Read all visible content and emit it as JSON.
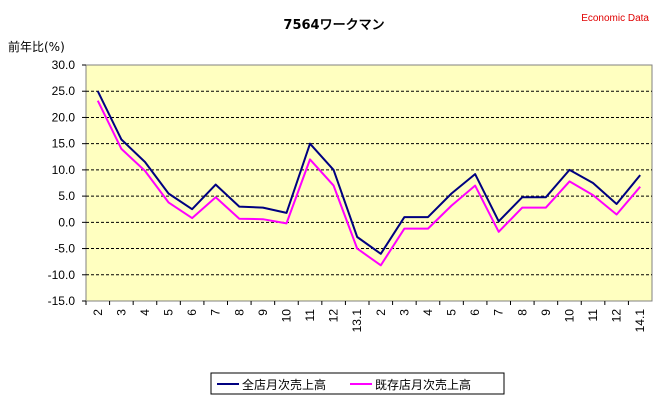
{
  "header": {
    "brand": "Economic Data"
  },
  "chart_data": {
    "type": "line",
    "title": "7564ワークマン",
    "ylabel": "前年比(%)",
    "xlabel": "",
    "ylim": [
      -15,
      30
    ],
    "yticks": [
      "30.0",
      "25.0",
      "20.0",
      "15.0",
      "10.0",
      "5.0",
      "0.0",
      "-5.0",
      "-10.0",
      "-15.0"
    ],
    "grid": "horizontal dashed",
    "legend_position": "bottom",
    "plot_background": "#ffffc0",
    "categories": [
      "2",
      "3",
      "4",
      "5",
      "6",
      "7",
      "8",
      "9",
      "10",
      "11",
      "12",
      "13.1",
      "2",
      "3",
      "4",
      "5",
      "6",
      "7",
      "8",
      "9",
      "10",
      "11",
      "12",
      "14.1"
    ],
    "series": [
      {
        "name": "全店月次売上高",
        "color": "#000080",
        "values": [
          25.0,
          15.8,
          11.5,
          5.5,
          2.5,
          7.2,
          3.0,
          2.8,
          1.8,
          15.0,
          10.0,
          -2.8,
          -6.0,
          1.0,
          1.0,
          5.5,
          9.2,
          0.2,
          4.8,
          4.8,
          10.0,
          7.5,
          3.5,
          9.0
        ]
      },
      {
        "name": "既存店月次売上高",
        "color": "#ff00ff",
        "values": [
          23.2,
          14.0,
          9.8,
          3.8,
          0.8,
          4.8,
          0.7,
          0.6,
          -0.2,
          12.0,
          7.0,
          -5.0,
          -8.2,
          -1.2,
          -1.2,
          3.2,
          7.0,
          -1.8,
          2.8,
          2.8,
          7.8,
          5.2,
          1.5,
          6.8
        ]
      }
    ]
  }
}
